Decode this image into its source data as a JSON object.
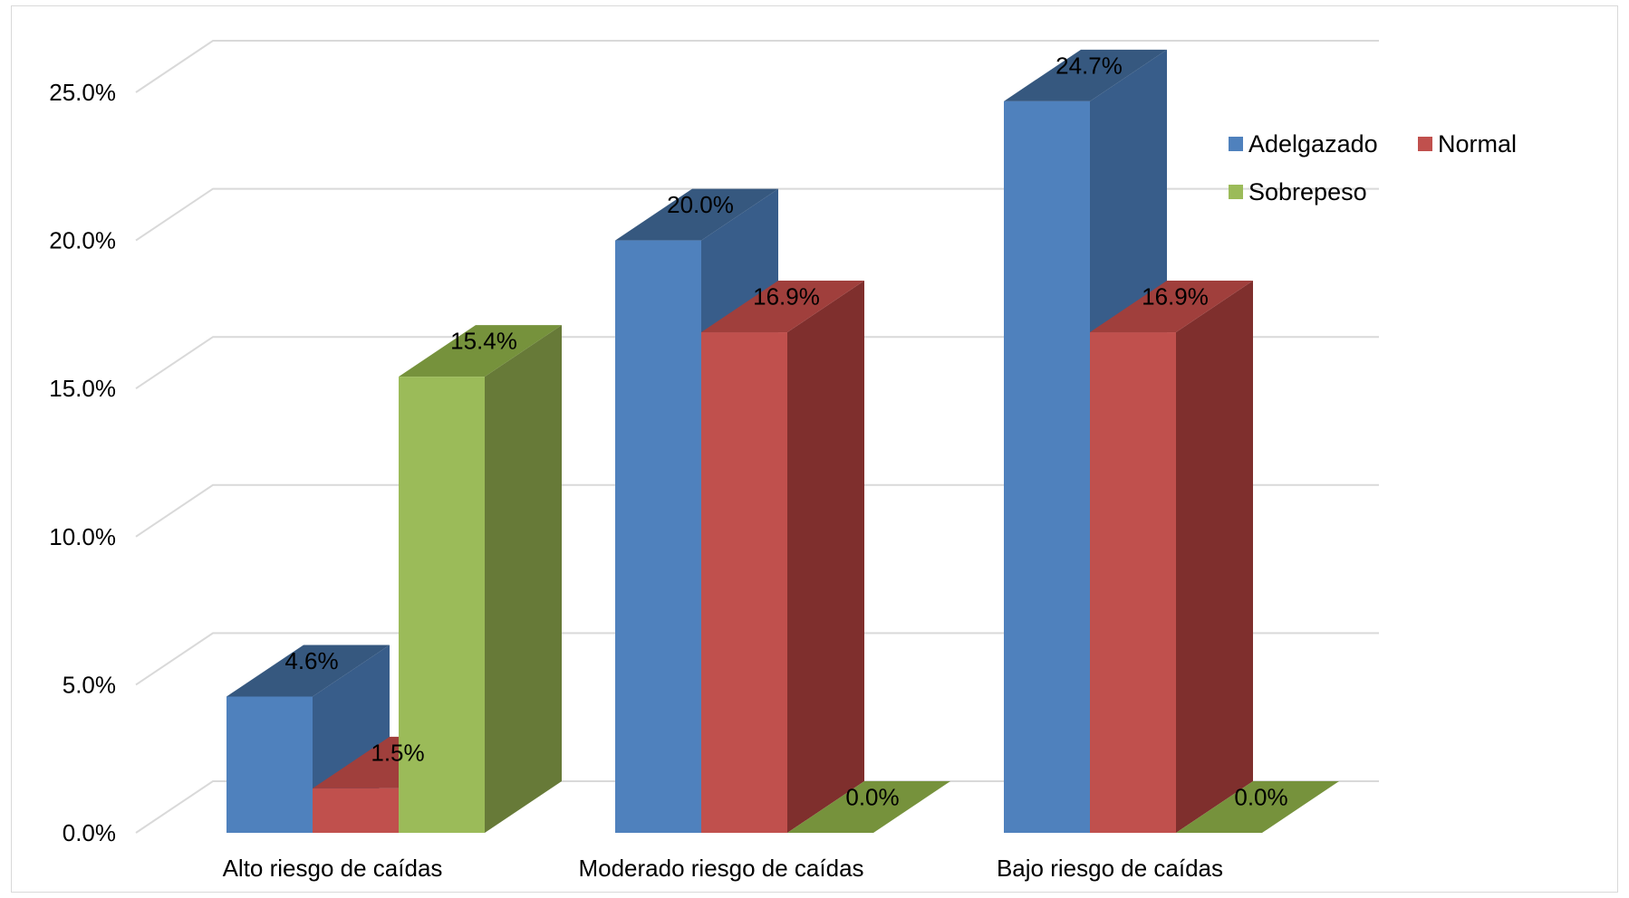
{
  "chart_data": {
    "type": "bar",
    "title": "",
    "xlabel": "",
    "ylabel": "",
    "categories": [
      "Alto riesgo de caídas",
      "Moderado riesgo de caídas",
      "Bajo riesgo de caídas"
    ],
    "series": [
      {
        "name": "Adelgazado",
        "values": [
          4.6,
          20.0,
          24.7
        ],
        "labels": [
          "4.6%",
          "20.0%",
          "24.7%"
        ],
        "color": "#4F81BD",
        "side_color": "#385D8A",
        "top_color": "#36587F"
      },
      {
        "name": "Normal",
        "values": [
          1.5,
          16.9,
          16.9
        ],
        "labels": [
          "1.5%",
          "16.9%",
          "16.9%"
        ],
        "color": "#C0504D",
        "side_color": "#7F2F2D",
        "top_color": "#A03F3C"
      },
      {
        "name": "Sobrepeso",
        "values": [
          15.4,
          0.0,
          0.0
        ],
        "labels": [
          "15.4%",
          "0.0%",
          "0.0%"
        ],
        "color": "#9BBB59",
        "side_color": "#677A38",
        "top_color": "#76923C"
      }
    ],
    "y_ticks": [
      "0.0%",
      "5.0%",
      "10.0%",
      "15.0%",
      "20.0%",
      "25.0%"
    ],
    "ylim": [
      0,
      25
    ],
    "grid": true,
    "legend_position": "top-right",
    "style": "3d-clustered-column"
  }
}
